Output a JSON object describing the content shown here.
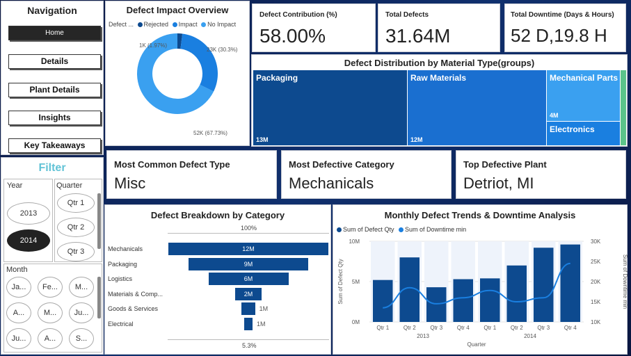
{
  "nav": {
    "title": "Navigation",
    "buttons": [
      "Home",
      "Details",
      "Plant Details",
      "Insights",
      "Key Takeaways"
    ]
  },
  "filter": {
    "title": "Filter",
    "year_label": "Year",
    "years": [
      "2013",
      "2014"
    ],
    "selected_year": "2014",
    "quarter_label": "Quarter",
    "quarters": [
      "Qtr 1",
      "Qtr 2",
      "Qtr 3"
    ],
    "month_label": "Month",
    "months": [
      "Ja...",
      "Fe...",
      "M...",
      "A...",
      "M...",
      "Ju...",
      "Ju...",
      "A...",
      "S..."
    ]
  },
  "donut": {
    "title": "Defect Impact Overview",
    "legend_title": "Defect ...",
    "legend": [
      "Rejected",
      "Impact",
      "No Impact"
    ],
    "labels": [
      "1K (1.97%)",
      "23K (30.3%)",
      "52K (67.73%)"
    ],
    "colors": [
      "#0d4a8f",
      "#1a7fe0",
      "#3aa0f0"
    ]
  },
  "kpis": [
    {
      "label": "Defect Contribution (%)",
      "value": "58.00%"
    },
    {
      "label": "Total Defects",
      "value": "31.64M"
    },
    {
      "label": "Total Downtime (Days & Hours)",
      "value": "52 D,19.8 H"
    }
  ],
  "treemap": {
    "title": "Defect Distribution by Material Type(groups)",
    "cells": [
      {
        "name": "Packaging",
        "value": "13M"
      },
      {
        "name": "Raw Materials",
        "value": "12M"
      },
      {
        "name": "Mechanical Parts",
        "value": "4M"
      },
      {
        "name": "Electronics",
        "value": ""
      }
    ]
  },
  "info": [
    {
      "label": "Most Common Defect Type",
      "value": "Misc"
    },
    {
      "label": "Most Defective Category",
      "value": "Mechanicals"
    },
    {
      "label": "Top Defective Plant",
      "value": "Detriot, MI"
    }
  ],
  "funnel": {
    "title": "Defect Breakdown by Category",
    "top_pct": "100%",
    "bottom_pct": "5.3%",
    "categories": [
      "Mechanicals",
      "Packaging",
      "Logistics",
      "Materials & Comp...",
      "Goods & Services",
      "Electrical"
    ],
    "values": [
      12,
      9,
      6,
      2,
      1,
      1
    ],
    "value_labels": [
      "12M",
      "9M",
      "6M",
      "2M",
      "1M",
      "1M"
    ]
  },
  "chart_data": {
    "type": "bar",
    "title": "Monthly Defect Trends & Downtime Analysis",
    "legend": [
      "Sum of Defect Qty",
      "Sum of Downtime min"
    ],
    "categories": [
      "Qtr 1",
      "Qtr 2",
      "Qtr 3",
      "Qtr 4",
      "Qtr 1",
      "Qtr 2",
      "Qtr 3",
      "Qtr 4"
    ],
    "years": [
      "2013",
      "2014"
    ],
    "xlabel": "Quarter",
    "ylabel": "Sum of Defect Qty",
    "y2label": "Sum of Downtime min",
    "ylim": [
      0,
      10
    ],
    "yticks": [
      "0M",
      "5M",
      "10M"
    ],
    "y2lim": [
      10,
      30
    ],
    "y2ticks": [
      "10K",
      "15K",
      "20K",
      "25K",
      "30K"
    ],
    "series": [
      {
        "name": "Sum of Defect Qty",
        "values": [
          5.2,
          8.0,
          4.3,
          5.3,
          5.4,
          7.0,
          9.2,
          9.6
        ],
        "unit": "M"
      },
      {
        "name": "Sum of Downtime min",
        "values": [
          13.5,
          18.5,
          14.5,
          16.0,
          17.8,
          15.0,
          16.0,
          24.5
        ],
        "unit": "K"
      }
    ],
    "colors": [
      "#0d4a8f",
      "#1a7fe0"
    ]
  }
}
